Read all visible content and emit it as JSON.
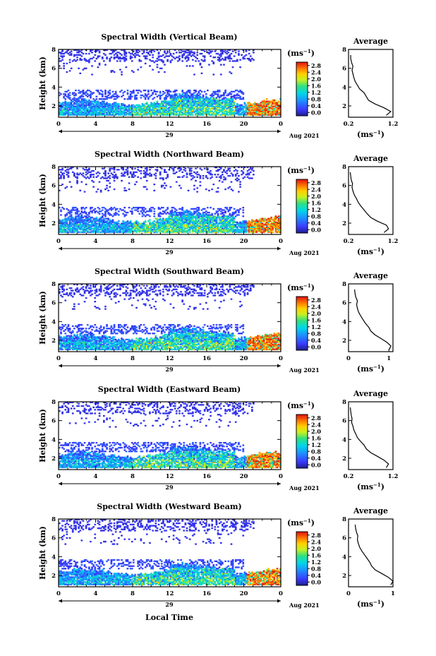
{
  "figure": {
    "xlabel": "Local Time"
  },
  "panels": [
    {
      "title": "Spectral Width (Vertical Beam)",
      "ylabel": "Height (km)",
      "date_day": "29",
      "date_label": "Aug 2021",
      "cbar_unit": "(ms",
      "cbar_exp": "−1",
      "cbar_ticks": [
        "2.8",
        "2.4",
        "2.0",
        "1.6",
        "1.2",
        "0.8",
        "0.4",
        "0.0"
      ],
      "avg_title": "Average",
      "avg_xlabel": "(ms",
      "avg_xlabel_exp": "−1",
      "avg_xticks": [
        "0.2",
        "1.2"
      ]
    },
    {
      "title": "Spectral Width (Northward Beam)",
      "ylabel": "Height (km)",
      "date_day": "29",
      "date_label": "Aug 2021",
      "cbar_unit": "(ms",
      "cbar_exp": "−1",
      "cbar_ticks": [
        "2.8",
        "2.4",
        "2.0",
        "1.6",
        "1.2",
        "0.8",
        "0.4",
        "0.0"
      ],
      "avg_title": "Average",
      "avg_xlabel": "(ms",
      "avg_xlabel_exp": "−1",
      "avg_xticks": [
        "0.2",
        "1.2"
      ]
    },
    {
      "title": "Spectral Width (Southward Beam)",
      "ylabel": "Height (km)",
      "date_day": "29",
      "date_label": "Aug 2021",
      "cbar_unit": "(ms",
      "cbar_exp": "−1",
      "cbar_ticks": [
        "2.8",
        "2.4",
        "2.0",
        "1.6",
        "1.2",
        "0.8",
        "0.4",
        "0.0"
      ],
      "avg_title": "Average",
      "avg_xlabel": "(ms",
      "avg_xlabel_exp": "−1",
      "avg_xticks": [
        "0",
        "1"
      ]
    },
    {
      "title": "Spectral Width (Eastward Beam)",
      "ylabel": "Height (km)",
      "date_day": "29",
      "date_label": "Aug 2021",
      "cbar_unit": "(ms",
      "cbar_exp": "−1",
      "cbar_ticks": [
        "2.8",
        "2.4",
        "2.0",
        "1.6",
        "1.2",
        "0.8",
        "0.4",
        "0.0"
      ],
      "avg_title": "Average",
      "avg_xlabel": "(ms",
      "avg_xlabel_exp": "−1",
      "avg_xticks": [
        "0.2",
        "1.2"
      ]
    },
    {
      "title": "Spectral Width (Westward Beam)",
      "ylabel": "Height (km)",
      "date_day": "29",
      "date_label": "Aug 2021",
      "cbar_unit": "(ms",
      "cbar_exp": "−1",
      "cbar_ticks": [
        "2.8",
        "2.4",
        "2.0",
        "1.6",
        "1.2",
        "0.8",
        "0.4",
        "0.0"
      ],
      "avg_title": "Average",
      "avg_xlabel": "(ms",
      "avg_xlabel_exp": "−1",
      "avg_xticks": [
        "0",
        "1"
      ]
    }
  ],
  "chart_data": [
    {
      "type": "heatmap",
      "title": "Spectral Width (Vertical Beam)",
      "xlabel": "Local Time",
      "ylabel": "Height (km)",
      "xlim": [
        0,
        24
      ],
      "ylim": [
        0.8,
        8
      ],
      "xticks": [
        "0",
        "4",
        "8",
        "12",
        "16",
        "20",
        "0"
      ],
      "yticks": [
        "2",
        "4",
        "6",
        "8"
      ],
      "colorbar": {
        "label": "(ms−1)",
        "range": [
          0,
          2.8
        ],
        "ticks": [
          "0.0",
          "0.4",
          "0.8",
          "1.2",
          "1.6",
          "2.0",
          "2.4",
          "2.8"
        ]
      },
      "profile": {
        "title": "Average",
        "xlabel": "(ms−1)",
        "xlim": [
          0.2,
          1.2
        ],
        "heights": [
          1.0,
          1.4,
          1.8,
          2.2,
          2.6,
          3.0,
          3.4,
          3.8,
          4.2,
          4.6,
          5.0,
          5.4,
          5.8,
          6.2,
          6.6,
          7.0,
          7.4
        ],
        "values": [
          1.05,
          1.15,
          1.0,
          0.8,
          0.65,
          0.6,
          0.55,
          0.45,
          0.4,
          0.35,
          0.32,
          0.3,
          0.28,
          0.3,
          0.27,
          0.25,
          0.25
        ]
      }
    },
    {
      "type": "heatmap",
      "title": "Spectral Width (Northward Beam)",
      "xlabel": "Local Time",
      "ylabel": "Height (km)",
      "xlim": [
        0,
        24
      ],
      "ylim": [
        0.8,
        8
      ],
      "xticks": [
        "0",
        "4",
        "8",
        "12",
        "16",
        "20",
        "0"
      ],
      "yticks": [
        "2",
        "4",
        "6",
        "8"
      ],
      "colorbar": {
        "label": "(ms−1)",
        "range": [
          0,
          2.8
        ],
        "ticks": [
          "0.0",
          "0.4",
          "0.8",
          "1.2",
          "1.6",
          "2.0",
          "2.4",
          "2.8"
        ]
      },
      "profile": {
        "title": "Average",
        "xlabel": "(ms−1)",
        "xlim": [
          0.2,
          1.2
        ],
        "heights": [
          1.0,
          1.4,
          1.8,
          2.2,
          2.6,
          3.0,
          3.4,
          3.8,
          4.2,
          4.6,
          5.0,
          5.4,
          5.8,
          6.2,
          6.6,
          7.0,
          7.4
        ],
        "values": [
          1.0,
          1.1,
          1.05,
          0.85,
          0.7,
          0.62,
          0.55,
          0.48,
          0.42,
          0.38,
          0.33,
          0.3,
          0.28,
          0.29,
          0.26,
          0.25,
          0.24
        ]
      }
    },
    {
      "type": "heatmap",
      "title": "Spectral Width (Southward Beam)",
      "xlabel": "Local Time",
      "ylabel": "Height (km)",
      "xlim": [
        0,
        24
      ],
      "ylim": [
        0.8,
        8
      ],
      "xticks": [
        "0",
        "4",
        "8",
        "12",
        "16",
        "20",
        "0"
      ],
      "yticks": [
        "2",
        "4",
        "6",
        "8"
      ],
      "colorbar": {
        "label": "(ms−1)",
        "range": [
          0,
          2.8
        ],
        "ticks": [
          "0.0",
          "0.4",
          "0.8",
          "1.2",
          "1.6",
          "2.0",
          "2.4",
          "2.8"
        ]
      },
      "profile": {
        "title": "Average",
        "xlabel": "(ms−1)",
        "xlim": [
          0,
          1.1
        ],
        "heights": [
          1.0,
          1.4,
          1.8,
          2.2,
          2.6,
          3.0,
          3.4,
          3.8,
          4.2,
          4.6,
          5.0,
          5.4,
          5.8,
          6.2,
          6.6,
          7.0,
          7.4
        ],
        "values": [
          1.0,
          1.05,
          0.95,
          0.8,
          0.65,
          0.55,
          0.5,
          0.42,
          0.36,
          0.3,
          0.25,
          0.22,
          0.2,
          0.22,
          0.18,
          0.16,
          0.15
        ]
      }
    },
    {
      "type": "heatmap",
      "title": "Spectral Width (Eastward Beam)",
      "xlabel": "Local Time",
      "ylabel": "Height (km)",
      "xlim": [
        0,
        24
      ],
      "ylim": [
        0.8,
        8
      ],
      "xticks": [
        "0",
        "4",
        "8",
        "12",
        "16",
        "20",
        "0"
      ],
      "yticks": [
        "2",
        "4",
        "6",
        "8"
      ],
      "colorbar": {
        "label": "(ms−1)",
        "range": [
          0,
          2.8
        ],
        "ticks": [
          "0.0",
          "0.4",
          "0.8",
          "1.2",
          "1.6",
          "2.0",
          "2.4",
          "2.8"
        ]
      },
      "profile": {
        "title": "Average",
        "xlabel": "(ms−1)",
        "xlim": [
          0.2,
          1.2
        ],
        "heights": [
          1.0,
          1.4,
          1.8,
          2.2,
          2.6,
          3.0,
          3.4,
          3.8,
          4.2,
          4.6,
          5.0,
          5.4,
          5.8,
          6.2,
          6.6,
          7.0,
          7.4
        ],
        "values": [
          1.05,
          1.1,
          1.0,
          0.85,
          0.7,
          0.6,
          0.55,
          0.47,
          0.4,
          0.36,
          0.32,
          0.3,
          0.27,
          0.28,
          0.26,
          0.25,
          0.24
        ]
      }
    },
    {
      "type": "heatmap",
      "title": "Spectral Width (Westward Beam)",
      "xlabel": "Local Time",
      "ylabel": "Height (km)",
      "xlim": [
        0,
        24
      ],
      "ylim": [
        0.8,
        8
      ],
      "xticks": [
        "0",
        "4",
        "8",
        "12",
        "16",
        "20",
        "0"
      ],
      "yticks": [
        "2",
        "4",
        "6",
        "8"
      ],
      "colorbar": {
        "label": "(ms−1)",
        "range": [
          0,
          2.8
        ],
        "ticks": [
          "0.0",
          "0.4",
          "0.8",
          "1.2",
          "1.6",
          "2.0",
          "2.4",
          "2.8"
        ]
      },
      "profile": {
        "title": "Average",
        "xlabel": "(ms−1)",
        "xlim": [
          0,
          1.0
        ],
        "heights": [
          1.0,
          1.4,
          1.8,
          2.2,
          2.6,
          3.0,
          3.4,
          3.8,
          4.2,
          4.6,
          5.0,
          5.4,
          5.8,
          6.2,
          6.6,
          7.0,
          7.4
        ],
        "values": [
          0.95,
          1.0,
          0.9,
          0.75,
          0.6,
          0.52,
          0.48,
          0.42,
          0.36,
          0.3,
          0.25,
          0.22,
          0.2,
          0.21,
          0.18,
          0.16,
          0.15
        ]
      }
    }
  ]
}
